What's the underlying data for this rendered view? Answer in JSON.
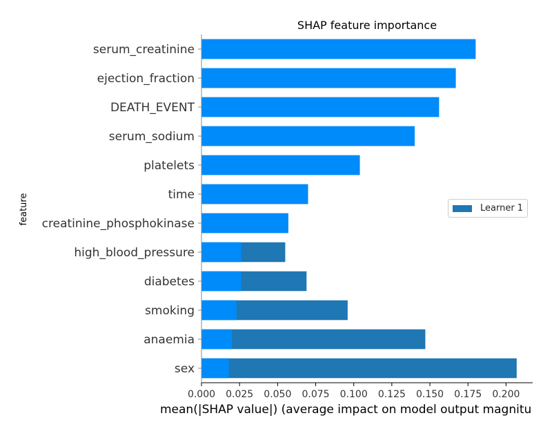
{
  "chart_data": {
    "type": "bar",
    "orientation": "horizontal",
    "title": "SHAP feature importance",
    "xlabel": "mean(|SHAP value|) (average impact on model output magnitu",
    "ylabel": "feature",
    "xlim": [
      0,
      0.2175
    ],
    "xticks": [
      "0.000",
      "0.025",
      "0.050",
      "0.075",
      "0.100",
      "0.125",
      "0.150",
      "0.175",
      "0.200"
    ],
    "categories": [
      "serum_creatinine",
      "ejection_fraction",
      "DEATH_EVENT",
      "serum_sodium",
      "platelets",
      "time",
      "creatinine_phosphokinase",
      "high_blood_pressure",
      "diabetes",
      "smoking",
      "anaemia",
      "sex"
    ],
    "series": [
      {
        "name": "Learner 1",
        "color": "#1f77b4",
        "values": [
          0.18,
          0.167,
          0.156,
          0.14,
          0.104,
          0.07,
          0.057,
          0.055,
          0.069,
          0.096,
          0.147,
          0.207
        ]
      },
      {
        "color": "#008bfb",
        "values": [
          0.18,
          0.167,
          0.156,
          0.14,
          0.104,
          0.07,
          0.057,
          0.026,
          0.026,
          0.023,
          0.02,
          0.018
        ]
      }
    ],
    "legend": {
      "position": "center-right",
      "entries": [
        "Learner 1"
      ]
    },
    "grid": false
  }
}
